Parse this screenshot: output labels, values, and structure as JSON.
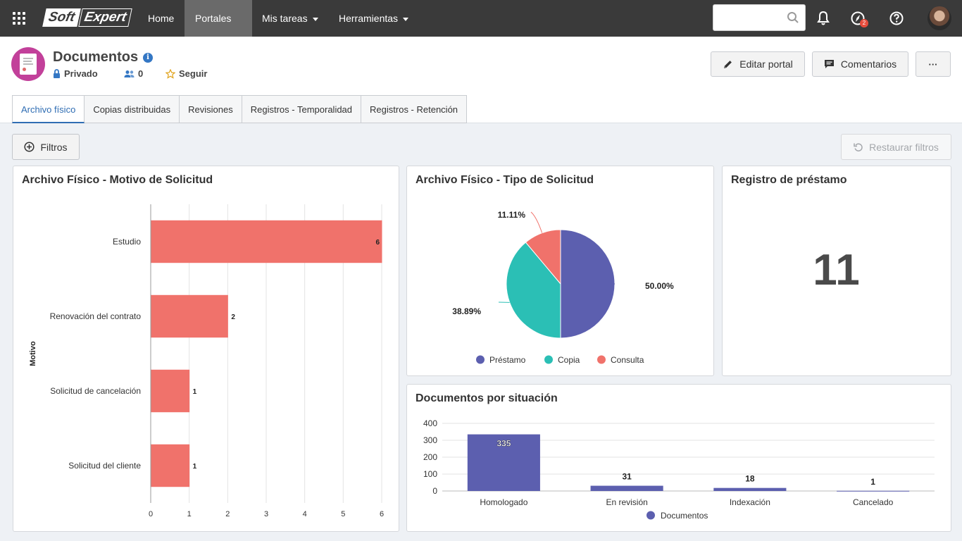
{
  "topnav": {
    "logo_part1": "Soft",
    "logo_part2": "Expert",
    "items": [
      {
        "label": "Home"
      },
      {
        "label": "Portales"
      },
      {
        "label": "Mis tareas"
      },
      {
        "label": "Herramientas"
      }
    ],
    "search_value": "",
    "badge_count": "2"
  },
  "header": {
    "title": "Documentos",
    "privacy": "Privado",
    "members": "0",
    "follow": "Seguir",
    "buttons": {
      "edit": "Editar portal",
      "comments": "Comentarios",
      "more": "···"
    },
    "tabs": [
      {
        "label": "Archivo físico"
      },
      {
        "label": "Copias distribuidas"
      },
      {
        "label": "Revisiones"
      },
      {
        "label": "Registros - Temporalidad"
      },
      {
        "label": "Registros - Retención"
      }
    ]
  },
  "toolbar": {
    "filters": "Filtros",
    "restore": "Restaurar filtros"
  },
  "colors": {
    "bar_red": "#f0726b",
    "series_purple": "#5c5faf",
    "series_teal": "#2bbfb5",
    "series_red": "#f0726b",
    "active_tab": "#2f6db3"
  },
  "chart_data": [
    {
      "type": "bar",
      "orientation": "horizontal",
      "title": "Archivo Físico - Motivo de Solicitud",
      "ylabel": "Motivo",
      "categories": [
        "Estudio",
        "Renovación del contrato",
        "Solicitud de cancelación",
        "Solicitud del cliente"
      ],
      "values": [
        6,
        2,
        1,
        1
      ],
      "xticks": [
        0,
        1,
        2,
        3,
        4,
        5,
        6
      ],
      "xlim": [
        0,
        6
      ],
      "grid": true
    },
    {
      "type": "pie",
      "title": "Archivo Físico - Tipo de Solicitud",
      "labels": [
        "Préstamo",
        "Copia",
        "Consulta"
      ],
      "values": [
        50.0,
        38.89,
        11.11
      ],
      "value_labels": [
        "50.00%",
        "38.89%",
        "11.11%"
      ],
      "legend_position": "bottom"
    },
    {
      "type": "bar",
      "title": "Documentos por situación",
      "categories": [
        "Homologado",
        "En revisión",
        "Indexación",
        "Cancelado"
      ],
      "series": [
        {
          "name": "Documentos",
          "values": [
            335,
            31,
            18,
            1
          ]
        }
      ],
      "yticks": [
        0,
        100,
        200,
        300,
        400
      ],
      "ylim": [
        0,
        400
      ],
      "grid": true,
      "legend_position": "bottom"
    }
  ],
  "kpi": {
    "title": "Registro de préstamo",
    "value": "11"
  }
}
